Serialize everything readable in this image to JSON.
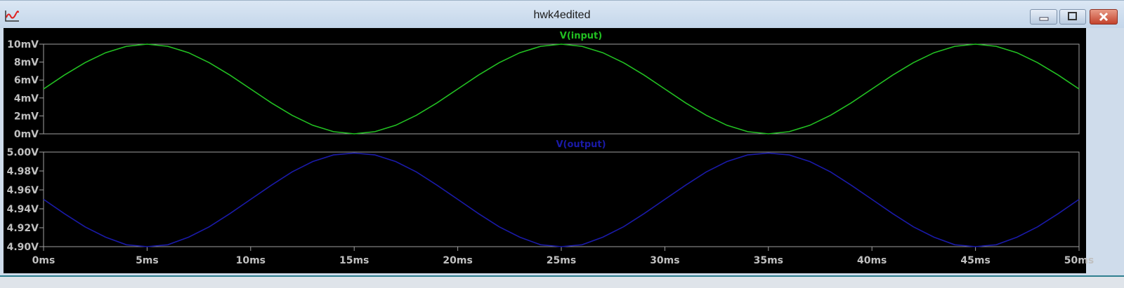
{
  "window": {
    "title": "hwk4edited",
    "icon": "waveform-viewer-icon"
  },
  "window_controls": {
    "minimize": "minimize-icon",
    "maximize": "maximize-icon",
    "close": "close-icon"
  },
  "colors": {
    "input_trace": "#22c022",
    "output_trace": "#1a1aa8",
    "background": "#000000",
    "grid": "#a0a0a0",
    "axis_text": "#c0c0c0"
  },
  "chart_data": [
    {
      "type": "line",
      "title": "V(input)",
      "x": [
        0,
        1,
        2,
        3,
        4,
        5,
        6,
        7,
        8,
        9,
        10,
        11,
        12,
        13,
        14,
        15,
        16,
        17,
        18,
        19,
        20,
        21,
        22,
        23,
        24,
        25,
        26,
        27,
        28,
        29,
        30,
        31,
        32,
        33,
        34,
        35,
        36,
        37,
        38,
        39,
        40,
        41,
        42,
        43,
        44,
        45,
        46,
        47,
        48,
        49,
        50
      ],
      "series": [
        {
          "name": "V(input)",
          "color": "#22c022",
          "values": [
            5,
            6.55,
            7.94,
            9.05,
            9.76,
            10,
            9.76,
            9.05,
            7.94,
            6.55,
            5,
            3.45,
            2.06,
            0.95,
            0.24,
            0,
            0.24,
            0.95,
            2.06,
            3.45,
            5,
            6.55,
            7.94,
            9.05,
            9.76,
            10,
            9.76,
            9.05,
            7.94,
            6.55,
            5,
            3.45,
            2.06,
            0.95,
            0.24,
            0,
            0.24,
            0.95,
            2.06,
            3.45,
            5,
            6.55,
            7.94,
            9.05,
            9.76,
            10,
            9.76,
            9.05,
            7.94,
            6.55,
            5
          ]
        }
      ],
      "xlim": [
        0,
        50
      ],
      "ylim": [
        0,
        10
      ],
      "yticks": [
        "0mV",
        "2mV",
        "4mV",
        "6mV",
        "8mV",
        "10mV"
      ],
      "ytick_values": [
        0,
        2,
        4,
        6,
        8,
        10
      ],
      "grid": false
    },
    {
      "type": "line",
      "title": "V(output)",
      "x": [
        0,
        1,
        2,
        3,
        4,
        5,
        6,
        7,
        8,
        9,
        10,
        11,
        12,
        13,
        14,
        15,
        16,
        17,
        18,
        19,
        20,
        21,
        22,
        23,
        24,
        25,
        26,
        27,
        28,
        29,
        30,
        31,
        32,
        33,
        34,
        35,
        36,
        37,
        38,
        39,
        40,
        41,
        42,
        43,
        44,
        45,
        46,
        47,
        48,
        49,
        50
      ],
      "series": [
        {
          "name": "V(output)",
          "color": "#1a1aa8",
          "values": [
            4.95,
            4.935,
            4.921,
            4.91,
            4.902,
            4.9,
            4.902,
            4.91,
            4.921,
            4.935,
            4.95,
            4.965,
            4.979,
            4.99,
            4.997,
            4.999,
            4.997,
            4.99,
            4.979,
            4.965,
            4.95,
            4.935,
            4.921,
            4.91,
            4.902,
            4.9,
            4.902,
            4.91,
            4.921,
            4.935,
            4.95,
            4.965,
            4.979,
            4.99,
            4.997,
            4.999,
            4.997,
            4.99,
            4.979,
            4.965,
            4.95,
            4.935,
            4.921,
            4.91,
            4.902,
            4.9,
            4.902,
            4.91,
            4.921,
            4.935,
            4.95
          ]
        }
      ],
      "xlim": [
        0,
        50
      ],
      "ylim": [
        4.9,
        5.0
      ],
      "yticks": [
        "4.90V",
        "4.92V",
        "4.94V",
        "4.96V",
        "4.98V",
        "5.00V"
      ],
      "ytick_values": [
        4.9,
        4.92,
        4.94,
        4.96,
        4.98,
        5.0
      ],
      "xticks": [
        "0ms",
        "5ms",
        "10ms",
        "15ms",
        "20ms",
        "25ms",
        "30ms",
        "35ms",
        "40ms",
        "45ms",
        "50ms"
      ],
      "xtick_values": [
        0,
        5,
        10,
        15,
        20,
        25,
        30,
        35,
        40,
        45,
        50
      ],
      "grid": false
    }
  ]
}
